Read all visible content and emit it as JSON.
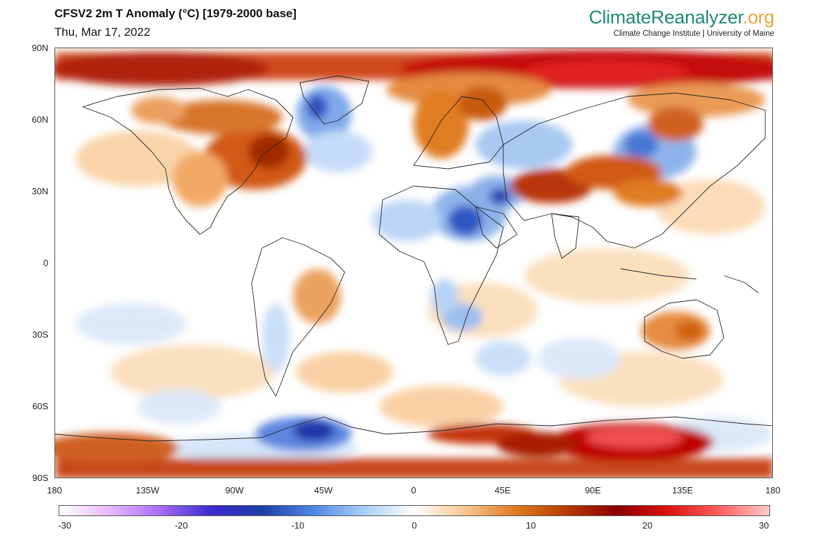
{
  "header": {
    "title": "CFSV2 2m T Anomaly (°C) [1979-2000 base]",
    "date": "Thu, Mar 17, 2022"
  },
  "brand": {
    "name_main": "ClimateReanalyzer",
    "name_tld": ".org",
    "subtitle": "Climate Change Institute | University of Maine",
    "color_main": "#1f8a70",
    "color_tld": "#e8a33c"
  },
  "map": {
    "projection": "equirectangular",
    "lat_labels": [
      "90N",
      "60N",
      "30N",
      "0",
      "30S",
      "60S",
      "90S"
    ],
    "lon_labels": [
      "180",
      "135W",
      "90W",
      "45W",
      "0",
      "45E",
      "90E",
      "135E",
      "180"
    ]
  },
  "colorbar": {
    "ticks": [
      "-30",
      "-20",
      "-10",
      "0",
      "10",
      "20",
      "30"
    ],
    "range": [
      -30,
      30
    ],
    "stops": [
      "#ffffff",
      "#e6b8ff",
      "#a66cf0",
      "#3b2bd1",
      "#1e3ea8",
      "#4f86e6",
      "#a9cff5",
      "#ffffff",
      "#f7c68e",
      "#e07b22",
      "#b83a00",
      "#8c0000",
      "#e01010",
      "#ff6060",
      "#ffc8c8"
    ]
  },
  "colors": {
    "warm": "#e07b22",
    "hot": "#c00000",
    "cold": "#4f86e6",
    "very_cold": "#1e3ea8"
  }
}
